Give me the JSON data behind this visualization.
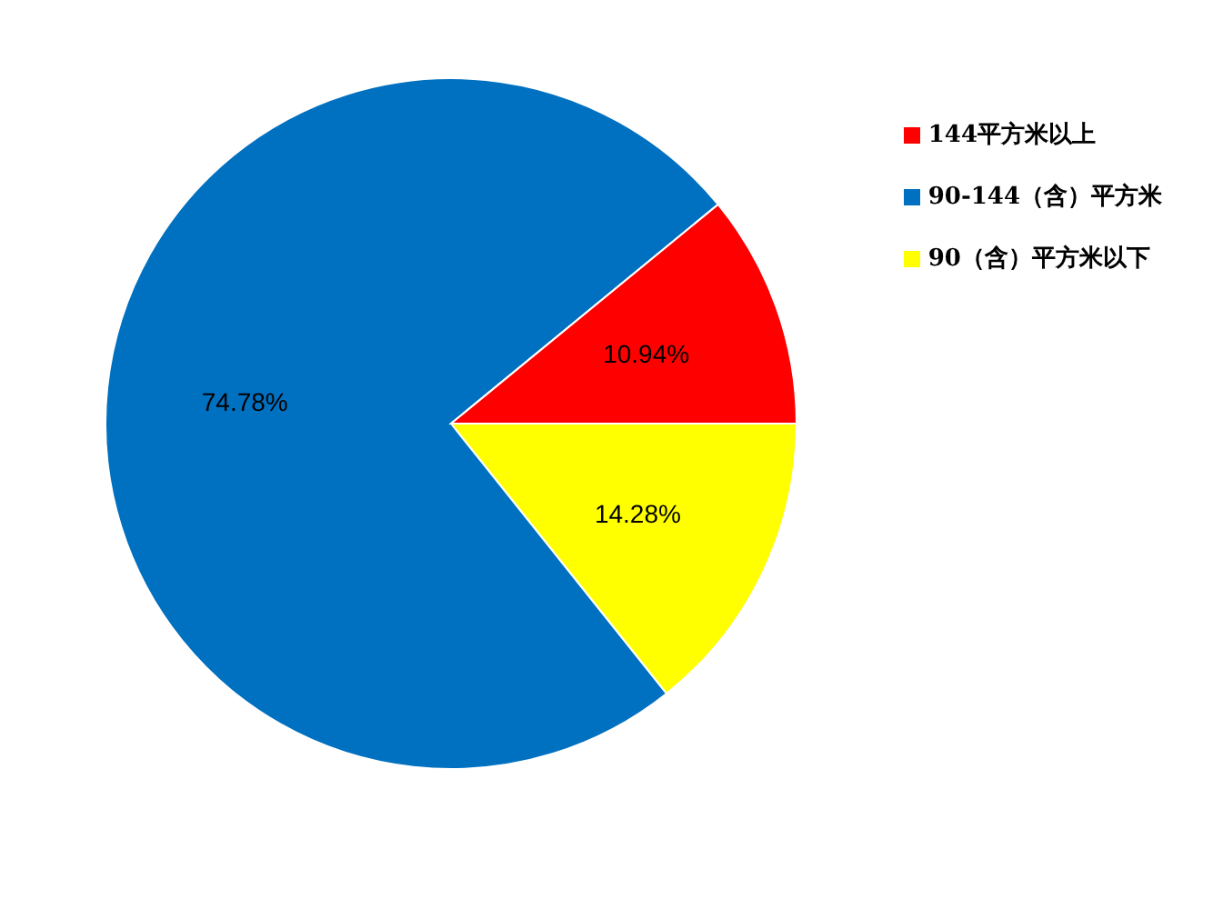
{
  "chart_data": {
    "type": "pie",
    "categories": [
      "90（含）平方米以下",
      "90-144（含）平方米",
      "144平方米以上"
    ],
    "values": [
      14.28,
      74.78,
      10.94
    ],
    "colors": [
      "#ffff00",
      "#0070c0",
      "#ff0000"
    ],
    "value_labels": [
      "14.28%",
      "74.78%",
      "10.94%"
    ],
    "legend": "top right"
  }
}
